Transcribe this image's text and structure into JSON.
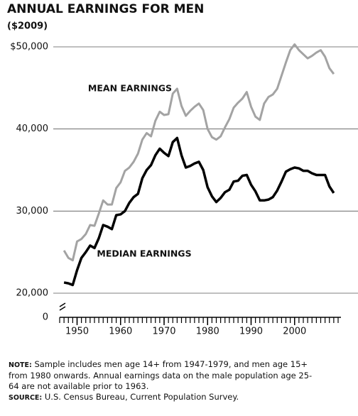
{
  "chart_data": {
    "type": "line",
    "title": "ANNUAL EARNINGS FOR MEN",
    "subtitle": "($2009)",
    "x": [
      1947,
      1948,
      1949,
      1950,
      1951,
      1952,
      1953,
      1954,
      1955,
      1956,
      1957,
      1958,
      1959,
      1960,
      1961,
      1962,
      1963,
      1964,
      1965,
      1966,
      1967,
      1968,
      1969,
      1970,
      1971,
      1972,
      1973,
      1974,
      1975,
      1976,
      1977,
      1978,
      1979,
      1980,
      1981,
      1982,
      1983,
      1984,
      1985,
      1986,
      1987,
      1988,
      1989,
      1990,
      1991,
      1992,
      1993,
      1994,
      1995,
      1996,
      1997,
      1998,
      1999,
      2000,
      2001,
      2002,
      2003,
      2004,
      2005,
      2006,
      2007,
      2008,
      2009
    ],
    "series": [
      {
        "name": "MEAN EARNINGS",
        "color": "#a3a3a3",
        "values": [
          25200,
          24300,
          24000,
          26300,
          26600,
          27200,
          28300,
          28200,
          29700,
          31300,
          30800,
          30800,
          32800,
          33500,
          34900,
          35300,
          36000,
          37000,
          38700,
          39500,
          39100,
          41000,
          42100,
          41700,
          41800,
          44300,
          44900,
          42800,
          41600,
          42200,
          42700,
          43100,
          42300,
          40000,
          39000,
          38700,
          39100,
          40200,
          41200,
          42600,
          43200,
          43700,
          44500,
          42700,
          41500,
          41100,
          43100,
          43900,
          44200,
          44900,
          46500,
          48100,
          49600,
          50300,
          49600,
          49100,
          48600,
          48900,
          49300,
          49600,
          48800,
          47400,
          46700
        ]
      },
      {
        "name": "MEDIAN EARNINGS",
        "color": "#000000",
        "values": [
          21300,
          21200,
          21000,
          22800,
          24300,
          25000,
          25800,
          25500,
          26700,
          28300,
          28100,
          27800,
          29500,
          29600,
          30000,
          31000,
          31700,
          32100,
          34000,
          35000,
          35600,
          36800,
          37600,
          37100,
          36700,
          38400,
          38900,
          36800,
          35300,
          35500,
          35800,
          36000,
          35000,
          32900,
          31800,
          31100,
          31600,
          32300,
          32600,
          33600,
          33700,
          34300,
          34400,
          33200,
          32400,
          31300,
          31300,
          31400,
          31700,
          32500,
          33600,
          34800,
          35100,
          35300,
          35200,
          34900,
          34900,
          34600,
          34400,
          34400,
          34400,
          33000,
          32200
        ]
      }
    ],
    "xlim": [
      1946,
      2010
    ],
    "xticks": [
      1950,
      1960,
      1970,
      1980,
      1990,
      2000
    ],
    "ylim": [
      20000,
      50000
    ],
    "yticks": [
      {
        "value": 20000,
        "label": "20,000"
      },
      {
        "value": 30000,
        "label": "30,000"
      },
      {
        "value": 40000,
        "label": "40,000"
      },
      {
        "value": 50000,
        "label": "$50,000"
      }
    ],
    "y_break_tick": 0,
    "grid": true,
    "note_label": "NOTE:",
    "note": "Sample includes men age 14+ from 1947-1979, and men age 15+ from 1980 onwards. Annual earnings data on the male population age 25-64 are not available prior to 1963.",
    "source_label": "SOURCE:",
    "source": "U.S. Census Bureau, Current Population Survey."
  }
}
